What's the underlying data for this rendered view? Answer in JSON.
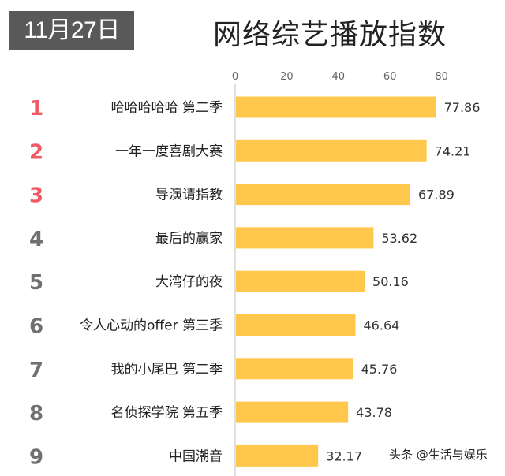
{
  "header": {
    "date": "11月27日",
    "title": "网络综艺播放指数"
  },
  "watermark": "头条 @生活与娱乐",
  "colors": {
    "bar": "#FFC84D",
    "rank_top": "#F05A64",
    "rank_other": "#707070",
    "axis": "#BFBFBF",
    "badge": "#595959"
  },
  "chart_data": {
    "type": "bar",
    "orientation": "horizontal",
    "title": "网络综艺播放指数",
    "xlim": [
      0,
      90
    ],
    "xticks": [
      0,
      20,
      40,
      60,
      80
    ],
    "xtick_labels": [
      "0",
      "20",
      "40",
      "60",
      "80"
    ],
    "ranks": [
      "1",
      "2",
      "3",
      "4",
      "5",
      "6",
      "7",
      "8",
      "9"
    ],
    "categories": [
      "哈哈哈哈哈 第二季",
      "一年一度喜剧大赛",
      "导演请指教",
      "最后的赢家",
      "大湾仔的夜",
      "令人心动的offer 第三季",
      "我的小尾巴 第二季",
      "名侦探学院 第五季",
      "中国潮音"
    ],
    "values": [
      77.86,
      74.21,
      67.89,
      53.62,
      50.16,
      46.64,
      45.76,
      43.78,
      32.17
    ],
    "value_labels": [
      "77.86",
      "74.21",
      "67.89",
      "53.62",
      "50.16",
      "46.64",
      "45.76",
      "43.78",
      "32.17"
    ],
    "grid": false,
    "legend": "none"
  }
}
